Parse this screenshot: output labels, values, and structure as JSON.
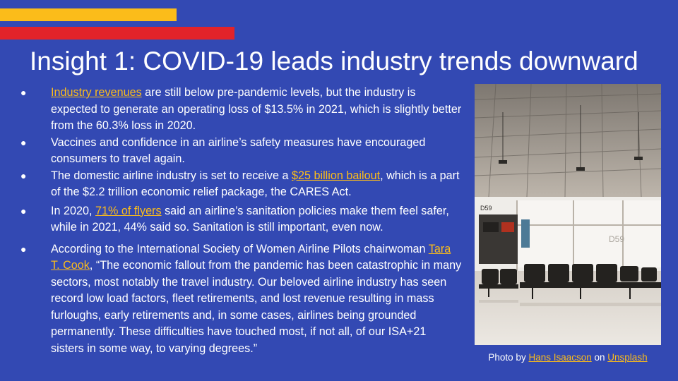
{
  "title": "Insight 1: COVID-19 leads industry trends downward",
  "bullets": [
    {
      "link": "Industry revenues",
      "text": " are still below pre-pandemic levels, but the industry is expected to generate an operating loss of $13.5% in 2021, which is slightly better from the 60.3% loss in 2020."
    },
    {
      "text": "Vaccines and confidence in an airline’s safety measures have encouraged consumers to travel again."
    },
    {
      "pre": "The domestic airline industry is set to receive a ",
      "link": "$25 billion bailout",
      "post": ", which is a part of the $2.2 trillion economic relief package, the CARES Act."
    },
    {
      "pre": "In 2020, ",
      "link": "71% of flyers",
      "post": " said an airline’s sanitation policies make them feel safer, while in 2021, 44% said so. Sanitation is still important, even now."
    },
    {
      "pre": "According to the International Society of Women Airline Pilots chairwoman ",
      "link": "Tara T. Cook",
      "post": ", “The economic fallout from the pandemic has been catastrophic in many sectors, most notably the travel industry. Our beloved airline industry has seen record low load factors, fleet retirements, and lost revenue resulting in mass furloughs, early retirements and, in some cases, airlines being grounded permanently. These difficulties have touched most, if not all, of our ISA+21 sisters in some way, to varying degrees.”"
    }
  ],
  "photo": {
    "gate_sign_left": "D59",
    "gate_sign_right": "D59"
  },
  "caption": {
    "pre": "Photo by ",
    "author": "Hans Isaacson",
    "mid": " on ",
    "source": "Unsplash"
  },
  "colors": {
    "background": "#3349b3",
    "accent_yellow": "#fbbc1a",
    "accent_red": "#e2232a"
  }
}
